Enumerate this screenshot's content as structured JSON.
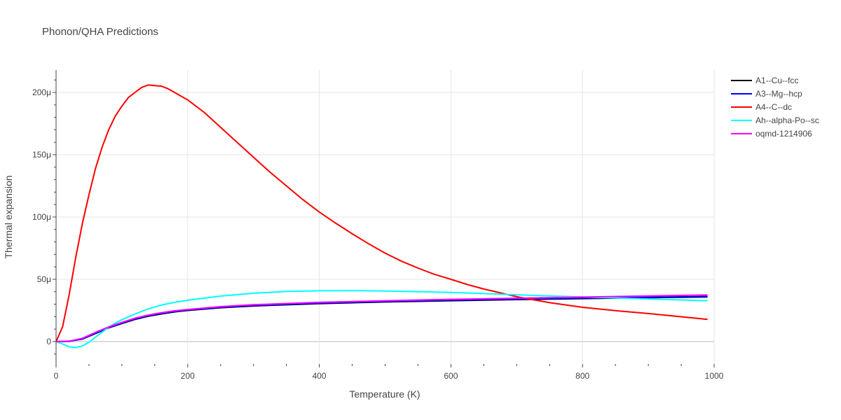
{
  "chart_data": {
    "type": "line",
    "title": "Phonon/QHA Predictions",
    "xlabel": "Temperature (K)",
    "ylabel": "Thermal expansion",
    "xlim": [
      0,
      1000
    ],
    "ylim": [
      -1.8e-05,
      0.000218
    ],
    "x_ticks": [
      {
        "value": 0,
        "label": "0"
      },
      {
        "value": 200,
        "label": "200"
      },
      {
        "value": 400,
        "label": "400"
      },
      {
        "value": 600,
        "label": "600"
      },
      {
        "value": 800,
        "label": "800"
      },
      {
        "value": 1000,
        "label": "1000"
      }
    ],
    "y_ticks": [
      {
        "value": 0,
        "label": "0"
      },
      {
        "value": 5e-05,
        "label": "50μ"
      },
      {
        "value": 0.0001,
        "label": "100μ"
      },
      {
        "value": 0.00015,
        "label": "150μ"
      },
      {
        "value": 0.0002,
        "label": "200μ"
      }
    ],
    "grid": true,
    "legend_position": "top-right",
    "series": [
      {
        "name": "A1--Cu--fcc",
        "color": "#000000",
        "x": [
          0,
          20,
          40,
          60,
          80,
          100,
          120,
          140,
          160,
          180,
          200,
          250,
          300,
          400,
          500,
          600,
          700,
          800,
          900,
          990
        ],
        "y": [
          0,
          3e-07,
          2e-06,
          6.5e-06,
          1.1e-05,
          1.45e-05,
          1.78e-05,
          2.03e-05,
          2.22e-05,
          2.38e-05,
          2.5e-05,
          2.72e-05,
          2.86e-05,
          3.05e-05,
          3.18e-05,
          3.28e-05,
          3.37e-05,
          3.45e-05,
          3.52e-05,
          3.58e-05
        ]
      },
      {
        "name": "A3--Mg--hcp",
        "color": "#0000ff",
        "x": [
          0,
          20,
          40,
          60,
          80,
          100,
          120,
          140,
          160,
          180,
          200,
          250,
          300,
          400,
          500,
          600,
          700,
          800,
          900,
          990
        ],
        "y": [
          0,
          2e-07,
          2.2e-06,
          6.8e-06,
          1.12e-05,
          1.48e-05,
          1.82e-05,
          2.07e-05,
          2.26e-05,
          2.41e-05,
          2.53e-05,
          2.75e-05,
          2.9e-05,
          3.09e-05,
          3.22e-05,
          3.32e-05,
          3.41e-05,
          3.49e-05,
          3.56e-05,
          3.62e-05
        ]
      },
      {
        "name": "A4--C--dc",
        "color": "#ff0000",
        "x": [
          0,
          10,
          20,
          30,
          40,
          50,
          60,
          70,
          80,
          90,
          100,
          110,
          120,
          130,
          140,
          150,
          160,
          170,
          180,
          200,
          225,
          250,
          275,
          300,
          325,
          350,
          375,
          400,
          425,
          450,
          475,
          500,
          525,
          550,
          575,
          600,
          625,
          650,
          700,
          750,
          800,
          850,
          900,
          990
        ],
        "y": [
          0,
          1.2e-05,
          3.8e-05,
          6.8e-05,
          9.5e-05,
          0.000118,
          0.000139,
          0.000156,
          0.00017,
          0.000181,
          0.000189,
          0.000196,
          0.0002,
          0.000204,
          0.000206,
          0.0002055,
          0.000205,
          0.000203,
          0.0002,
          0.000194,
          0.000184,
          0.000172,
          0.00016,
          0.000148,
          0.000136,
          0.000125,
          0.000114,
          0.000104,
          9.5e-05,
          8.65e-05,
          7.85e-05,
          7.1e-05,
          6.45e-05,
          5.9e-05,
          5.4e-05,
          5e-05,
          4.58e-05,
          4.22e-05,
          3.6e-05,
          3.12e-05,
          2.75e-05,
          2.48e-05,
          2.25e-05,
          1.78e-05
        ]
      },
      {
        "name": "Ah--alpha-Po--sc",
        "color": "#00ffff",
        "x": [
          0,
          10,
          20,
          30,
          40,
          50,
          60,
          70,
          80,
          90,
          100,
          120,
          140,
          160,
          180,
          200,
          250,
          300,
          350,
          400,
          450,
          500,
          550,
          600,
          700,
          800,
          900,
          990
        ],
        "y": [
          0,
          -2e-06,
          -4.2e-06,
          -4.8e-06,
          -3.5e-06,
          -5e-07,
          3.5e-06,
          7.5e-06,
          1.15e-05,
          1.48e-05,
          1.75e-05,
          2.22e-05,
          2.62e-05,
          2.93e-05,
          3.15e-05,
          3.32e-05,
          3.65e-05,
          3.88e-05,
          4.02e-05,
          4.08e-05,
          4.09e-05,
          4.06e-05,
          4.01e-05,
          3.94e-05,
          3.76e-05,
          3.58e-05,
          3.42e-05,
          3.28e-05
        ]
      },
      {
        "name": "oqmd-1214906",
        "color": "#ff00ff",
        "x": [
          0,
          20,
          40,
          60,
          80,
          100,
          120,
          140,
          160,
          180,
          200,
          250,
          300,
          400,
          500,
          600,
          700,
          800,
          900,
          990
        ],
        "y": [
          0,
          4e-07,
          2.6e-06,
          7.4e-06,
          1.18e-05,
          1.54e-05,
          1.88e-05,
          2.13e-05,
          2.32e-05,
          2.47e-05,
          2.58e-05,
          2.81e-05,
          2.96e-05,
          3.15e-05,
          3.28e-05,
          3.39e-05,
          3.48e-05,
          3.57e-05,
          3.66e-05,
          3.74e-05
        ]
      }
    ]
  }
}
